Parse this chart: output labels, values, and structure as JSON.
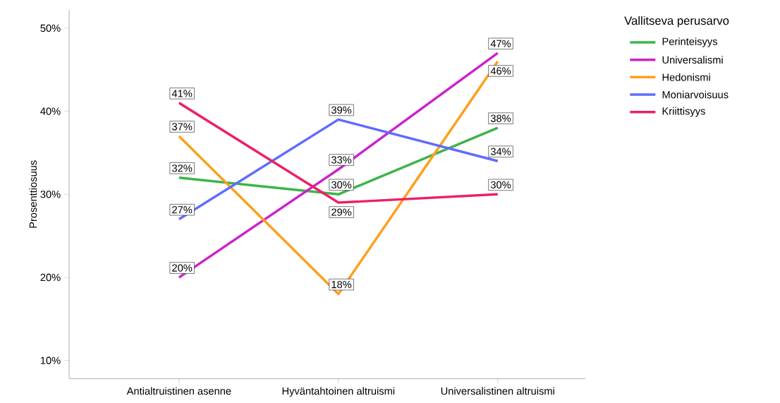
{
  "chart_data": {
    "type": "line",
    "ylabel": "Prosenttiosuus",
    "legend_title": "Vallitseva perusarvo",
    "legend": "top right",
    "marker": "none",
    "grid": false,
    "categories": [
      "Antialtruistinen asenne",
      "Hyväntahtoinen altruismi",
      "Universalistinen altruismi"
    ],
    "ylim": [
      7.8,
      52.2
    ],
    "yticks": [
      {
        "value": 10,
        "label": "10%"
      },
      {
        "value": 20,
        "label": "20%"
      },
      {
        "value": 30,
        "label": "30%"
      },
      {
        "value": 40,
        "label": "40%"
      },
      {
        "value": 50,
        "label": "50%"
      }
    ],
    "series": [
      {
        "name": "Perinteisyys",
        "color": "#3cb44b",
        "values": [
          32,
          30,
          38
        ],
        "value_labels": [
          "32%",
          "30%",
          "38%"
        ]
      },
      {
        "name": "Universalismi",
        "color": "#cc22cc",
        "values": [
          20,
          33,
          47
        ],
        "value_labels": [
          "20%",
          "33%",
          "47%"
        ]
      },
      {
        "name": "Hedonismi",
        "color": "#ff9f1a",
        "values": [
          37,
          18,
          46
        ],
        "value_labels": [
          "37%",
          "18%",
          "46%"
        ]
      },
      {
        "name": "Moniarvoisuus",
        "color": "#5f6bff",
        "values": [
          27,
          39,
          34
        ],
        "value_labels": [
          "27%",
          "39%",
          "34%"
        ]
      },
      {
        "name": "Kriittisyys",
        "color": "#ee1f66",
        "values": [
          41,
          29,
          30
        ],
        "value_labels": [
          "41%",
          "29%",
          "30%"
        ]
      }
    ]
  }
}
